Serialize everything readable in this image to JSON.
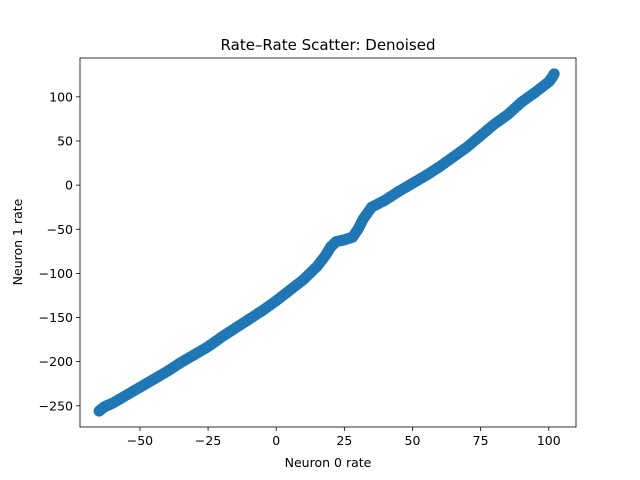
{
  "chart_data": {
    "type": "scatter",
    "title": "Rate–Rate Scatter: Denoised",
    "xlabel": "Neuron 0 rate",
    "ylabel": "Neuron 1 rate",
    "xlim": [
      -72,
      110
    ],
    "ylim": [
      -274,
      144
    ],
    "xticks": [
      -50,
      -25,
      0,
      25,
      50,
      75,
      100
    ],
    "yticks": [
      -250,
      -200,
      -150,
      -100,
      -50,
      0,
      50,
      100
    ],
    "xtick_labels": [
      "−50",
      "−25",
      "0",
      "25",
      "50",
      "75",
      "100"
    ],
    "ytick_labels": [
      "−250",
      "−200",
      "−150",
      "−100",
      "−50",
      "0",
      "50",
      "100"
    ],
    "grid": false,
    "series": [
      {
        "color": "#1f77b4",
        "marker": "circle",
        "points": [
          [
            -65,
            -256
          ],
          [
            -63,
            -251
          ],
          [
            -60,
            -247
          ],
          [
            -55,
            -238
          ],
          [
            -50,
            -229
          ],
          [
            -45,
            -220
          ],
          [
            -40,
            -211
          ],
          [
            -35,
            -201
          ],
          [
            -30,
            -192
          ],
          [
            -25,
            -183
          ],
          [
            -20,
            -172
          ],
          [
            -15,
            -162
          ],
          [
            -10,
            -152
          ],
          [
            -5,
            -142
          ],
          [
            0,
            -131
          ],
          [
            5,
            -119
          ],
          [
            10,
            -107
          ],
          [
            15,
            -92
          ],
          [
            18,
            -80
          ],
          [
            20,
            -70
          ],
          [
            22,
            -64
          ],
          [
            25,
            -62
          ],
          [
            28,
            -59
          ],
          [
            30,
            -50
          ],
          [
            32,
            -38
          ],
          [
            35,
            -25
          ],
          [
            40,
            -17
          ],
          [
            45,
            -7
          ],
          [
            50,
            2
          ],
          [
            55,
            11
          ],
          [
            60,
            21
          ],
          [
            65,
            32
          ],
          [
            70,
            43
          ],
          [
            75,
            56
          ],
          [
            80,
            69
          ],
          [
            85,
            80
          ],
          [
            90,
            94
          ],
          [
            95,
            105
          ],
          [
            100,
            117
          ],
          [
            101,
            121
          ],
          [
            102,
            126
          ]
        ]
      }
    ]
  }
}
